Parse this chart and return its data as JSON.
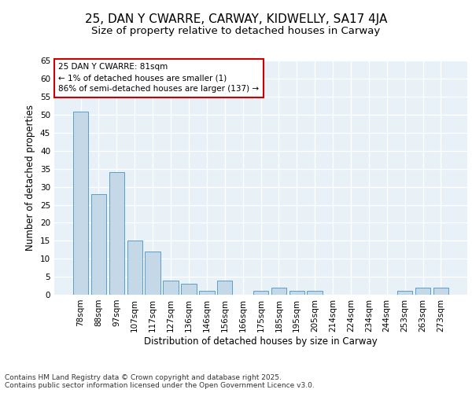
{
  "title1": "25, DAN Y CWARRE, CARWAY, KIDWELLY, SA17 4JA",
  "title2": "Size of property relative to detached houses in Carway",
  "xlabel": "Distribution of detached houses by size in Carway",
  "ylabel": "Number of detached properties",
  "categories": [
    "78sqm",
    "88sqm",
    "97sqm",
    "107sqm",
    "117sqm",
    "127sqm",
    "136sqm",
    "146sqm",
    "156sqm",
    "166sqm",
    "175sqm",
    "185sqm",
    "195sqm",
    "205sqm",
    "214sqm",
    "224sqm",
    "234sqm",
    "244sqm",
    "253sqm",
    "263sqm",
    "273sqm"
  ],
  "values": [
    51,
    28,
    34,
    15,
    12,
    4,
    3,
    1,
    4,
    0,
    1,
    2,
    1,
    1,
    0,
    0,
    0,
    0,
    1,
    2,
    2
  ],
  "bar_color": "#c5d8e8",
  "bar_edge_color": "#5a9ec9",
  "annotation_text": "25 DAN Y CWARRE: 81sqm\n← 1% of detached houses are smaller (1)\n86% of semi-detached houses are larger (137) →",
  "annotation_box_color": "#ffffff",
  "annotation_edge_color": "#cc0000",
  "ylim": [
    0,
    65
  ],
  "yticks": [
    0,
    5,
    10,
    15,
    20,
    25,
    30,
    35,
    40,
    45,
    50,
    55,
    60,
    65
  ],
  "background_color": "#e8f0f8",
  "grid_color": "#ffffff",
  "footer_text": "Contains HM Land Registry data © Crown copyright and database right 2025.\nContains public sector information licensed under the Open Government Licence v3.0.",
  "title1_fontsize": 11,
  "title2_fontsize": 9.5,
  "ylabel_fontsize": 8.5,
  "xlabel_fontsize": 8.5,
  "tick_fontsize": 7.5,
  "footer_fontsize": 6.5,
  "annotation_fontsize": 7.5
}
